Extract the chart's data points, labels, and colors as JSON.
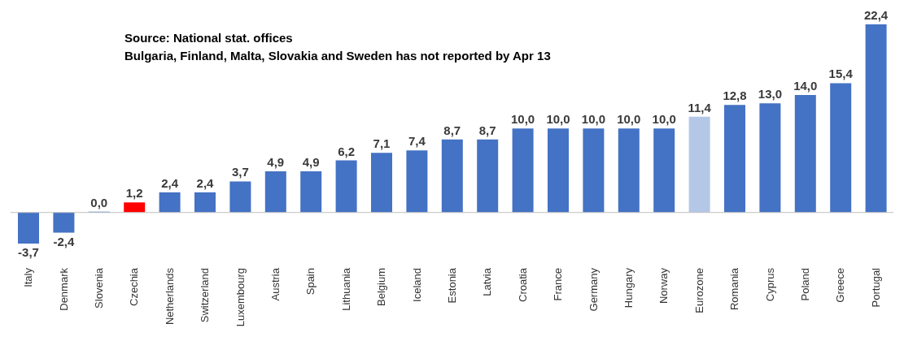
{
  "chart_data": {
    "type": "bar",
    "annotations": [
      "Source: National stat. offices",
      "Bulgaria, Finland, Malta, Slovakia and Sweden has not reported by Apr 13"
    ],
    "categories": [
      "Italy",
      "Denmark",
      "Slovenia",
      "Czechia",
      "Netherlands",
      "Switzerland",
      "Luxembourg",
      "Austria",
      "Spain",
      "Lithuania",
      "Belgium",
      "Iceland",
      "Estonia",
      "Latvia",
      "Croatia",
      "France",
      "Germany",
      "Hungary",
      "Norway",
      "Eurozone",
      "Romania",
      "Cyprus",
      "Poland",
      "Greece",
      "Portugal"
    ],
    "values": [
      -3.7,
      -2.4,
      0.0,
      1.2,
      2.4,
      2.4,
      3.7,
      4.9,
      4.9,
      6.2,
      7.1,
      7.4,
      8.7,
      8.7,
      10.0,
      10.0,
      10.0,
      10.0,
      10.0,
      11.4,
      12.8,
      13.0,
      14.0,
      15.4,
      22.4
    ],
    "value_labels": [
      "-3,7",
      "-2,4",
      "0,0",
      "1,2",
      "2,4",
      "2,4",
      "3,7",
      "4,9",
      "4,9",
      "6,2",
      "7,1",
      "7,4",
      "8,7",
      "8,7",
      "10,0",
      "10,0",
      "10,0",
      "10,0",
      "10,0",
      "11,4",
      "12,8",
      "13,0",
      "14,0",
      "15,4",
      "22,4"
    ],
    "colors": [
      "#4472c4",
      "#4472c4",
      "#4472c4",
      "#ff0000",
      "#4472c4",
      "#4472c4",
      "#4472c4",
      "#4472c4",
      "#4472c4",
      "#4472c4",
      "#4472c4",
      "#4472c4",
      "#4472c4",
      "#4472c4",
      "#4472c4",
      "#4472c4",
      "#4472c4",
      "#4472c4",
      "#4472c4",
      "#b4c7e7",
      "#4472c4",
      "#4472c4",
      "#4472c4",
      "#4472c4",
      "#4472c4"
    ],
    "grid": false,
    "legend": false
  }
}
